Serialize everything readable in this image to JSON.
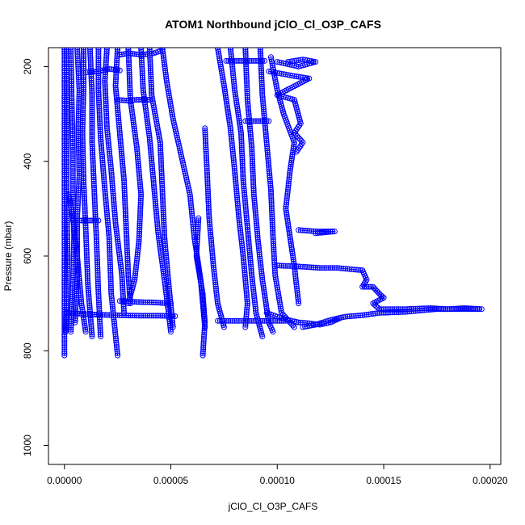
{
  "chart_data": {
    "type": "scatter",
    "title": "ATOM1 Northbound jClO_Cl_O3P_CAFS",
    "xlabel": "jClO_Cl_O3P_CAFS",
    "ylabel": "Pressure (mbar)",
    "xlim": [
      -7.5e-06,
      0.000205
    ],
    "ylim": [
      1040,
      160
    ],
    "y_reversed": true,
    "x_ticks": [
      0,
      5e-05,
      0.0001,
      0.00015,
      0.0002
    ],
    "x_tick_labels": [
      "0.00000",
      "0.00005",
      "0.00010",
      "0.00015",
      "0.00020"
    ],
    "y_ticks": [
      200,
      400,
      600,
      800,
      1000
    ],
    "y_tick_labels": [
      "200",
      "400",
      "600",
      "800",
      "1000"
    ],
    "marker": "open-circle",
    "connected": true,
    "color": "#0000ff",
    "grid": false,
    "legend": "none",
    "series": [
      {
        "points": [
          [
            0,
            160
          ],
          [
            0,
            300
          ],
          [
            0,
            450
          ],
          [
            0,
            600
          ],
          [
            0,
            700
          ],
          [
            0,
            810
          ]
        ]
      },
      {
        "points": [
          [
            1e-06,
            160
          ],
          [
            1.2e-06,
            300
          ],
          [
            1e-06,
            450
          ],
          [
            1.5e-06,
            600
          ],
          [
            1e-06,
            700
          ],
          [
            5e-07,
            760
          ]
        ]
      },
      {
        "points": [
          [
            3e-06,
            160
          ],
          [
            3.5e-06,
            280
          ],
          [
            4e-06,
            380
          ],
          [
            4e-06,
            470
          ],
          [
            4.5e-06,
            560
          ],
          [
            4e-06,
            650
          ],
          [
            3e-06,
            760
          ]
        ]
      },
      {
        "points": [
          [
            6e-06,
            160
          ],
          [
            7e-06,
            250
          ],
          [
            6.5e-06,
            330
          ],
          [
            7e-06,
            430
          ],
          [
            6e-06,
            520
          ],
          [
            6e-06,
            640
          ],
          [
            5e-06,
            740
          ]
        ]
      },
      {
        "points": [
          [
            9e-06,
            160
          ],
          [
            9e-06,
            240
          ],
          [
            8.5e-06,
            340
          ],
          [
            9e-06,
            440
          ],
          [
            1e-05,
            540
          ],
          [
            1.1e-05,
            660
          ],
          [
            1.3e-05,
            770
          ]
        ]
      },
      {
        "points": [
          [
            1.2e-05,
            160
          ],
          [
            1.3e-05,
            260
          ],
          [
            1.3e-05,
            360
          ],
          [
            1.4e-05,
            460
          ],
          [
            1.5e-05,
            560
          ],
          [
            1.6e-05,
            680
          ],
          [
            1.7e-05,
            770
          ]
        ]
      },
      {
        "points": [
          [
            1.6e-05,
            160
          ],
          [
            1.6e-05,
            250
          ],
          [
            1.7e-05,
            350
          ],
          [
            1.9e-05,
            460
          ],
          [
            2.1e-05,
            560
          ],
          [
            2.2e-05,
            680
          ],
          [
            2.5e-05,
            810
          ]
        ]
      },
      {
        "points": [
          [
            2e-05,
            160
          ],
          [
            1.9e-05,
            230
          ],
          [
            2e-05,
            330
          ],
          [
            2.2e-05,
            420
          ],
          [
            2.4e-05,
            530
          ],
          [
            2.7e-05,
            640
          ],
          [
            2.8e-05,
            720
          ]
        ]
      },
      {
        "points": [
          [
            2.5e-05,
            160
          ],
          [
            2.4e-05,
            240
          ],
          [
            2.6e-05,
            340
          ],
          [
            2.8e-05,
            440
          ],
          [
            2.9e-05,
            540
          ],
          [
            3e-05,
            640
          ],
          [
            3.1e-05,
            700
          ]
        ]
      },
      {
        "points": [
          [
            3e-05,
            160
          ],
          [
            3.1e-05,
            270
          ],
          [
            3.4e-05,
            370
          ],
          [
            3.6e-05,
            470
          ],
          [
            3.5e-05,
            570
          ],
          [
            3.3e-05,
            650
          ],
          [
            3e-05,
            700
          ]
        ]
      },
      {
        "points": [
          [
            3.6e-05,
            160
          ],
          [
            3.7e-05,
            250
          ],
          [
            4e-05,
            350
          ],
          [
            4.2e-05,
            450
          ],
          [
            4.4e-05,
            550
          ],
          [
            4.7e-05,
            650
          ],
          [
            5e-05,
            760
          ]
        ]
      },
      {
        "points": [
          [
            4e-05,
            160
          ],
          [
            4.1e-05,
            260
          ],
          [
            4.5e-05,
            360
          ],
          [
            4.6e-05,
            460
          ],
          [
            4.7e-05,
            560
          ],
          [
            4.9e-05,
            660
          ],
          [
            5.1e-05,
            750
          ]
        ]
      },
      {
        "points": [
          [
            4.6e-05,
            160
          ],
          [
            4.8e-05,
            230
          ],
          [
            5.1e-05,
            310
          ],
          [
            5.5e-05,
            390
          ],
          [
            5.9e-05,
            470
          ],
          [
            6.1e-05,
            560
          ],
          [
            6.4e-05,
            650
          ],
          [
            6.6e-05,
            750
          ]
        ]
      },
      {
        "points": [
          [
            6.6e-05,
            330
          ],
          [
            6.7e-05,
            420
          ],
          [
            6.8e-05,
            520
          ],
          [
            7e-05,
            620
          ],
          [
            7.2e-05,
            700
          ],
          [
            7.5e-05,
            750
          ]
        ]
      },
      {
        "points": [
          [
            6.3e-05,
            520
          ],
          [
            6.2e-05,
            600
          ],
          [
            6.5e-05,
            680
          ],
          [
            6.6e-05,
            740
          ],
          [
            6.5e-05,
            810
          ]
        ]
      },
      {
        "points": [
          [
            7.2e-05,
            160
          ],
          [
            7.5e-05,
            240
          ],
          [
            7.8e-05,
            330
          ],
          [
            8e-05,
            420
          ],
          [
            8.2e-05,
            520
          ],
          [
            8.4e-05,
            600
          ],
          [
            8.6e-05,
            700
          ],
          [
            8.5e-05,
            750
          ]
        ]
      },
      {
        "points": [
          [
            7.8e-05,
            160
          ],
          [
            8e-05,
            250
          ],
          [
            8.3e-05,
            340
          ],
          [
            8.4e-05,
            440
          ],
          [
            8.6e-05,
            540
          ],
          [
            8.8e-05,
            640
          ],
          [
            9e-05,
            720
          ],
          [
            9.3e-05,
            770
          ]
        ]
      },
      {
        "points": [
          [
            8.5e-05,
            160
          ],
          [
            8.6e-05,
            270
          ],
          [
            8.8e-05,
            370
          ],
          [
            8.9e-05,
            470
          ],
          [
            9.1e-05,
            570
          ],
          [
            9.3e-05,
            650
          ],
          [
            9.6e-05,
            740
          ],
          [
            9.8e-05,
            760
          ]
        ]
      },
      {
        "points": [
          [
            9.2e-05,
            160
          ],
          [
            9.3e-05,
            260
          ],
          [
            9.5e-05,
            360
          ],
          [
            9.7e-05,
            460
          ],
          [
            9.8e-05,
            560
          ],
          [
            9.9e-05,
            640
          ],
          [
            0.000102,
            720
          ],
          [
            0.000108,
            750
          ]
        ]
      },
      {
        "points": [
          [
            9.7e-05,
            180
          ],
          [
            0.0001,
            250
          ],
          [
            0.000103,
            300
          ],
          [
            0.000108,
            360
          ],
          [
            0.000106,
            420
          ],
          [
            0.000104,
            500
          ],
          [
            0.000106,
            560
          ],
          [
            0.000108,
            620
          ],
          [
            0.00011,
            700
          ]
        ]
      },
      {
        "points": [
          [
            0.000105,
            190
          ],
          [
            0.000112,
            185
          ],
          [
            0.000118,
            190
          ],
          [
            0.00011,
            200
          ],
          [
            0.0001,
            190
          ]
        ]
      },
      {
        "points": [
          [
            9.6e-05,
            210
          ],
          [
            0.000102,
            215
          ],
          [
            0.000108,
            220
          ],
          [
            0.000115,
            225
          ],
          [
            0.0001,
            260
          ],
          [
            0.000108,
            270
          ],
          [
            0.000111,
            320
          ],
          [
            0.000108,
            340
          ],
          [
            0.000112,
            360
          ],
          [
            0.000109,
            380
          ]
        ]
      },
      {
        "points": [
          [
            0.00011,
            545
          ],
          [
            0.000118,
            548
          ],
          [
            0.000127,
            548
          ],
          [
            0.000118,
            552
          ]
        ]
      },
      {
        "points": [
          [
            0.0001,
            620
          ],
          [
            0.00011,
            622
          ],
          [
            0.00012,
            625
          ],
          [
            0.000128,
            625
          ],
          [
            0.000135,
            628
          ],
          [
            0.00014,
            630
          ],
          [
            0.000142,
            650
          ],
          [
            0.00014,
            665
          ],
          [
            0.000145,
            665
          ],
          [
            0.000148,
            680
          ],
          [
            0.00015,
            688
          ],
          [
            0.000145,
            700
          ],
          [
            0.000148,
            712
          ],
          [
            0.00016,
            712
          ],
          [
            0.000172,
            710
          ],
          [
            0.00018,
            712
          ],
          [
            0.000188,
            710
          ],
          [
            0.000196,
            712
          ],
          [
            0.000175,
            712
          ],
          [
            0.00016,
            718
          ],
          [
            0.000148,
            720
          ],
          [
            0.00014,
            725
          ],
          [
            0.000132,
            728
          ],
          [
            0.000125,
            735
          ],
          [
            0.000118,
            745
          ],
          [
            0.000112,
            750
          ]
        ]
      },
      {
        "points": [
          [
            9.5e-05,
            720
          ],
          [
            0.0001,
            728
          ],
          [
            0.000105,
            735
          ],
          [
            0.00011,
            740
          ],
          [
            0.000115,
            742
          ],
          [
            0.00012,
            745
          ],
          [
            0.000125,
            740
          ],
          [
            0.00013,
            730
          ]
        ]
      },
      {
        "points": [
          [
            2e-06,
            470
          ],
          [
            4e-06,
            520
          ],
          [
            6e-06,
            600
          ],
          [
            8e-06,
            700
          ],
          [
            1e-05,
            760
          ]
        ]
      },
      {
        "points": [
          [
            1e-06,
            720
          ],
          [
            8e-06,
            722
          ],
          [
            1.6e-05,
            724
          ],
          [
            2.5e-05,
            725
          ],
          [
            3.5e-05,
            726
          ],
          [
            4.5e-05,
            726
          ],
          [
            5.2e-05,
            727
          ]
        ]
      },
      {
        "points": [
          [
            4e-06,
            525
          ],
          [
            1e-05,
            525
          ],
          [
            1.6e-05,
            525
          ]
        ]
      },
      {
        "points": [
          [
            2.6e-05,
            175
          ],
          [
            3e-05,
            172
          ],
          [
            3.6e-05,
            175
          ],
          [
            4.2e-05,
            172
          ],
          [
            4.6e-05,
            165
          ]
        ]
      },
      {
        "points": [
          [
            2.5e-05,
            270
          ],
          [
            3e-05,
            272
          ],
          [
            3.4e-05,
            270
          ],
          [
            4e-05,
            270
          ]
        ]
      },
      {
        "points": [
          [
            7.6e-05,
            188
          ],
          [
            8.2e-05,
            188
          ],
          [
            8.8e-05,
            188
          ],
          [
            9.4e-05,
            188
          ]
        ]
      },
      {
        "points": [
          [
            8.5e-05,
            315
          ],
          [
            9e-05,
            315
          ],
          [
            9.6e-05,
            315
          ]
        ]
      },
      {
        "points": [
          [
            2.6e-05,
            695
          ],
          [
            3.4e-05,
            697
          ],
          [
            4.2e-05,
            698
          ],
          [
            5e-05,
            700
          ]
        ]
      },
      {
        "points": [
          [
            7.2e-05,
            737
          ],
          [
            8e-05,
            737
          ],
          [
            8.8e-05,
            737
          ],
          [
            9.6e-05,
            737
          ],
          [
            0.000104,
            737
          ]
        ]
      },
      {
        "points": [
          [
            1.1e-05,
            212
          ],
          [
            1.6e-05,
            210
          ],
          [
            2.1e-05,
            205
          ],
          [
            2.6e-05,
            208
          ]
        ]
      }
    ]
  }
}
